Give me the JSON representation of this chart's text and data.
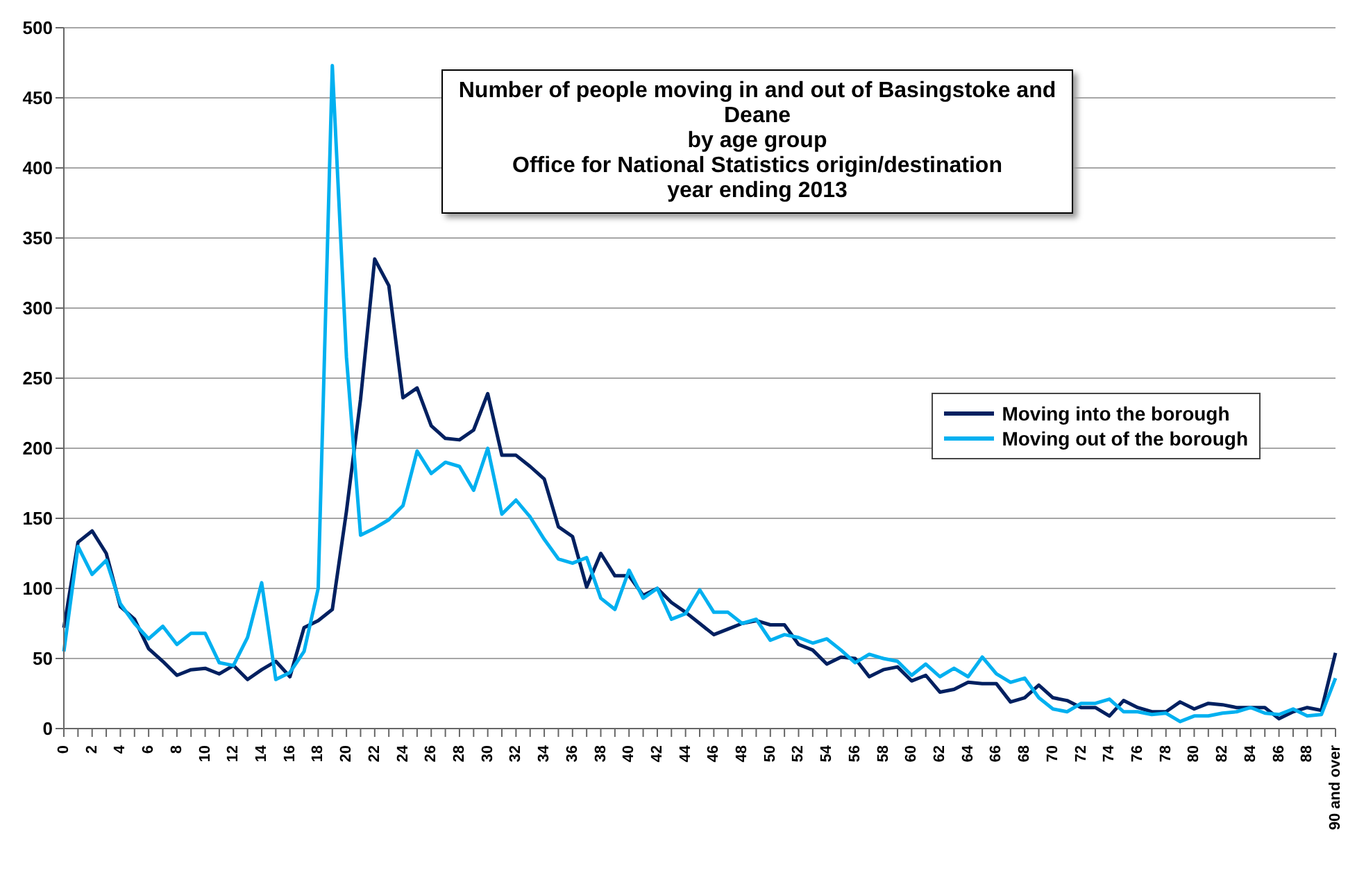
{
  "chart_data": {
    "type": "line",
    "title": "Number of people moving in and out of Basingstoke and Deane\nby age group\nOffice for National Statistics origin/destination\nyear ending 2013",
    "categories": [
      "0",
      null,
      "2",
      null,
      "4",
      null,
      "6",
      null,
      "8",
      null,
      "10",
      null,
      "12",
      null,
      "14",
      null,
      "16",
      null,
      "18",
      null,
      "20",
      null,
      "22",
      null,
      "24",
      null,
      "26",
      null,
      "28",
      null,
      "30",
      null,
      "32",
      null,
      "34",
      null,
      "36",
      null,
      "38",
      null,
      "40",
      null,
      "42",
      null,
      "44",
      null,
      "46",
      null,
      "48",
      null,
      "50",
      null,
      "52",
      null,
      "54",
      null,
      "56",
      null,
      "58",
      null,
      "60",
      null,
      "62",
      null,
      "64",
      null,
      "66",
      null,
      "68",
      null,
      "70",
      null,
      "72",
      null,
      "74",
      null,
      "76",
      null,
      "78",
      null,
      "80",
      null,
      "82",
      null,
      "84",
      null,
      "86",
      null,
      "88",
      null,
      "90 and over"
    ],
    "series": [
      {
        "name": "Moving into the borough",
        "color": "#002060",
        "values": [
          72,
          133,
          141,
          125,
          87,
          78,
          57,
          48,
          38,
          42,
          43,
          39,
          45,
          35,
          42,
          48,
          37,
          72,
          77,
          85,
          155,
          235,
          335,
          316,
          236,
          243,
          216,
          207,
          206,
          213,
          239,
          195,
          195,
          187,
          178,
          144,
          137,
          101,
          125,
          109,
          109,
          95,
          100,
          90,
          83,
          75,
          67,
          71,
          75,
          77,
          74,
          74,
          60,
          56,
          46,
          51,
          50,
          37,
          42,
          44,
          34,
          38,
          26,
          28,
          33,
          32,
          32,
          19,
          22,
          31,
          22,
          20,
          15,
          15,
          9,
          20,
          15,
          12,
          12,
          19,
          14,
          18,
          17,
          15,
          15,
          15,
          7,
          12,
          15,
          13,
          54
        ]
      },
      {
        "name": "Moving out of the borough",
        "color": "#00b0f0",
        "values": [
          55,
          130,
          110,
          120,
          89,
          75,
          64,
          73,
          60,
          68,
          68,
          47,
          45,
          65,
          104,
          35,
          40,
          55,
          100,
          473,
          265,
          138,
          143,
          149,
          159,
          198,
          182,
          190,
          187,
          170,
          200,
          153,
          163,
          151,
          135,
          121,
          118,
          122,
          93,
          85,
          113,
          93,
          100,
          78,
          82,
          99,
          83,
          83,
          75,
          78,
          63,
          67,
          65,
          61,
          64,
          56,
          47,
          53,
          50,
          48,
          38,
          46,
          37,
          43,
          37,
          51,
          39,
          33,
          36,
          22,
          14,
          12,
          18,
          18,
          21,
          12,
          12,
          10,
          11,
          5,
          9,
          9,
          11,
          12,
          15,
          11,
          10,
          14,
          9,
          10,
          36
        ]
      }
    ],
    "ylim": [
      0,
      500
    ],
    "yticks": [
      0,
      50,
      100,
      150,
      200,
      250,
      300,
      350,
      400,
      450,
      500
    ],
    "grid": "y",
    "legend": "right",
    "marker": "none",
    "line_style": "solid"
  }
}
